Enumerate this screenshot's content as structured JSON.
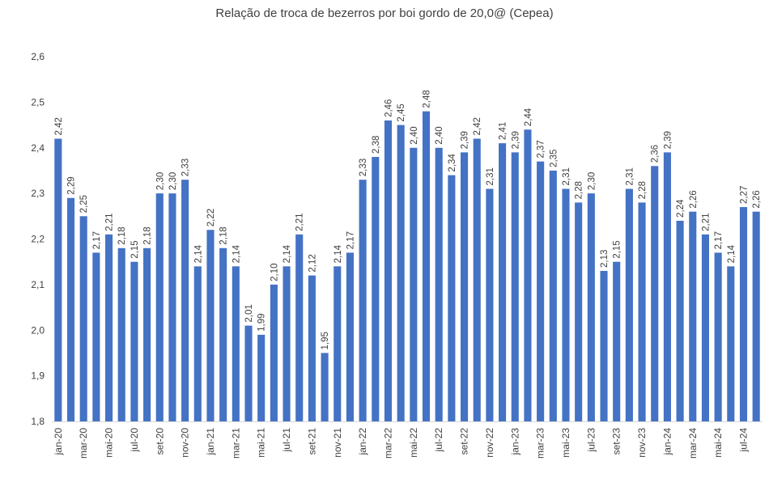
{
  "chart_data": {
    "type": "bar",
    "title": "Relação de troca de bezerros por boi gordo de 20,0@ (Cepea)",
    "xlabel": "",
    "ylabel": "",
    "ylim": [
      1.8,
      2.6
    ],
    "yticks": [
      "1,8",
      "1,9",
      "2,0",
      "2,1",
      "2,2",
      "2,3",
      "2,4",
      "2,5",
      "2,6"
    ],
    "grid": false,
    "bar_color": "#4472C4",
    "categories": [
      "jan-20",
      "fev-20",
      "mar-20",
      "abr-20",
      "mai-20",
      "jun-20",
      "jul-20",
      "ago-20",
      "set-20",
      "out-20",
      "nov-20",
      "dez-20",
      "jan-21",
      "fev-21",
      "mar-21",
      "abr-21",
      "mai-21",
      "jun-21",
      "jul-21",
      "ago-21",
      "set-21",
      "out-21",
      "nov-21",
      "dez-21",
      "jan-22",
      "fev-22",
      "mar-22",
      "abr-22",
      "mai-22",
      "jun-22",
      "jul-22",
      "ago-22",
      "set-22",
      "out-22",
      "nov-22",
      "dez-22",
      "jan-23",
      "fev-23",
      "mar-23",
      "abr-23",
      "mai-23",
      "jun-23",
      "jul-23",
      "ago-23",
      "set-23",
      "out-23",
      "nov-23",
      "dez-23",
      "jan-24",
      "fev-24",
      "mar-24",
      "abr-24",
      "mai-24",
      "jun-24",
      "jul-24",
      "ago-24"
    ],
    "visible_xtick_labels": [
      "jan-20",
      "mar-20",
      "mai-20",
      "jul-20",
      "set-20",
      "nov-20",
      "jan-21",
      "mar-21",
      "mai-21",
      "jul-21",
      "set-21",
      "nov-21",
      "jan-22",
      "mar-22",
      "mai-22",
      "jul-22",
      "set-22",
      "nov-22",
      "jan-23",
      "mar-23",
      "mai-23",
      "jul-23",
      "set-23",
      "nov-23",
      "jan-24",
      "mar-24",
      "mai-24",
      "jul-24"
    ],
    "values": [
      2.42,
      2.29,
      2.25,
      2.17,
      2.21,
      2.18,
      2.15,
      2.18,
      2.3,
      2.3,
      2.33,
      2.14,
      2.22,
      2.18,
      2.14,
      2.01,
      1.99,
      2.1,
      2.14,
      2.21,
      2.12,
      1.95,
      2.14,
      2.17,
      2.33,
      2.38,
      2.46,
      2.45,
      2.4,
      2.48,
      2.4,
      2.34,
      2.39,
      2.42,
      2.31,
      2.41,
      2.39,
      2.44,
      2.37,
      2.35,
      2.31,
      2.28,
      2.3,
      2.13,
      2.15,
      2.31,
      2.28,
      2.36,
      2.39,
      2.24,
      2.26,
      2.21,
      2.17,
      2.14,
      2.27,
      2.26
    ],
    "value_labels": [
      "2,42",
      "2,29",
      "2,25",
      "2,17",
      "2,21",
      "2,18",
      "2,15",
      "2,18",
      "2,30",
      "2,30",
      "2,33",
      "2,14",
      "2,22",
      "2,18",
      "2,14",
      "2,01",
      "1,99",
      "2,10",
      "2,14",
      "2,21",
      "2,12",
      "1,95",
      "2,14",
      "2,17",
      "2,33",
      "2,38",
      "2,46",
      "2,45",
      "2,40",
      "2,48",
      "2,40",
      "2,34",
      "2,39",
      "2,42",
      "2,31",
      "2,41",
      "2,39",
      "2,44",
      "2,37",
      "2,35",
      "2,31",
      "2,28",
      "2,30",
      "2,13",
      "2,15",
      "2,31",
      "2,28",
      "2,36",
      "2,39",
      "2,24",
      "2,26",
      "2,21",
      "2,17",
      "2,14",
      "2,27",
      "2,26"
    ]
  }
}
